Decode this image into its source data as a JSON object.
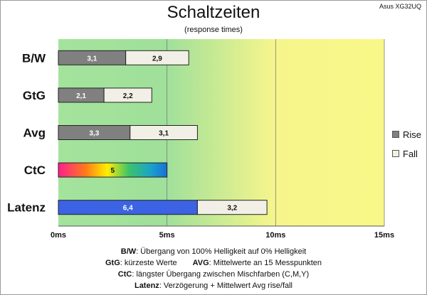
{
  "device": "Asus XG32UQ",
  "chart_data": {
    "type": "bar",
    "stacked": true,
    "orientation": "horizontal",
    "title": "Schaltzeiten",
    "subtitle": "(response times)",
    "categories": [
      "B/W",
      "GtG",
      "Avg",
      "CtC",
      "Latenz"
    ],
    "series": [
      {
        "name": "Rise",
        "color": "#808080",
        "values": [
          3.1,
          2.1,
          3.3,
          null,
          null
        ]
      },
      {
        "name": "Fall",
        "color": "#f2f0e6",
        "values": [
          2.9,
          2.2,
          3.1,
          null,
          3.2
        ]
      }
    ],
    "special_bars": [
      {
        "category": "CtC",
        "value": 5,
        "label": "5",
        "fill": "rainbow"
      },
      {
        "category": "Latenz",
        "value": 6.4,
        "label": "6,4",
        "color": "#3b63e3"
      }
    ],
    "value_labels": {
      "Rise": [
        "3,1",
        "2,1",
        "3,3",
        "",
        ""
      ],
      "Fall": [
        "2,9",
        "2,2",
        "3,1",
        "",
        "3,2"
      ]
    },
    "xlim": [
      0,
      15
    ],
    "xticks": [
      "0ms",
      "5ms",
      "10ms",
      "15ms"
    ],
    "legend_position": "right",
    "background": "gradient green to yellow"
  },
  "legend": {
    "rise": "Rise",
    "fall": "Fall"
  },
  "notes": {
    "bw_key": "B/W",
    "bw_text": ":  Übergang von 100% Helligkeit auf 0% Helligkeit",
    "gtg_key": "GtG",
    "gtg_text": ": kürzeste  Werte",
    "avg_key": "AVG",
    "avg_text": ": Mittelwerte  an 15 Messpunkten",
    "ctc_key": "CtC",
    "ctc_text": ": längster Übergang  zwischen Mischfarben (C,M,Y)",
    "lat_key": "Latenz",
    "lat_text": ": Verzögerung  + Mittelwert  Avg rise/fall"
  }
}
